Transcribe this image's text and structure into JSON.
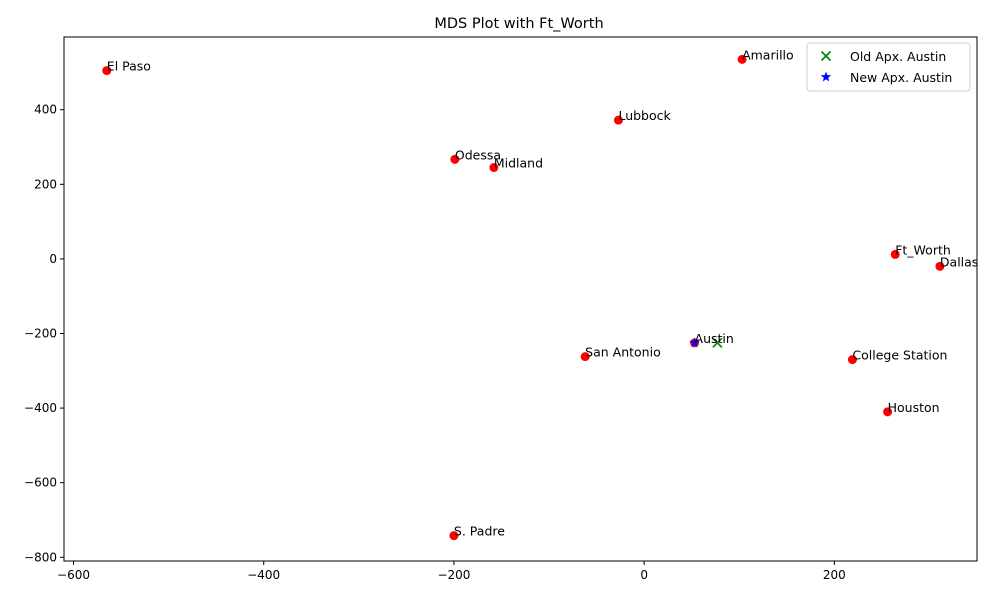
{
  "chart_data": {
    "type": "scatter",
    "title": "MDS Plot with Ft_Worth",
    "xlabel": "",
    "ylabel": "",
    "xlim": [
      -610,
      350
    ],
    "ylim": [
      -810,
      595
    ],
    "x_ticks": [
      -600,
      -400,
      -200,
      0,
      200
    ],
    "y_ticks": [
      -800,
      -600,
      -400,
      -200,
      0,
      200,
      400
    ],
    "grid": false,
    "legend_position": "top-right",
    "colors": {
      "cities": "#ff0000",
      "old": "#008000",
      "new": "#0000ff"
    },
    "cities": [
      {
        "name": "El Paso",
        "x": -565,
        "y": 505
      },
      {
        "name": "Amarillo",
        "x": 103,
        "y": 535
      },
      {
        "name": "Lubbock",
        "x": -27,
        "y": 372
      },
      {
        "name": "Odessa",
        "x": -199,
        "y": 267
      },
      {
        "name": "Midland",
        "x": -158,
        "y": 245
      },
      {
        "name": "Ft_Worth",
        "x": 264,
        "y": 12
      },
      {
        "name": "Dallas",
        "x": 311,
        "y": -20
      },
      {
        "name": "Austin",
        "x": 53,
        "y": -225
      },
      {
        "name": "San Antonio",
        "x": -62,
        "y": -262
      },
      {
        "name": "College Station",
        "x": 219,
        "y": -270
      },
      {
        "name": "Houston",
        "x": 256,
        "y": -410
      },
      {
        "name": "S. Padre",
        "x": -200,
        "y": -742
      }
    ],
    "series": [
      {
        "name": "Old Apx. Austin",
        "marker": "x",
        "color": "#008000",
        "x": [
          77
        ],
        "y": [
          -225
        ]
      },
      {
        "name": "New Apx. Austin",
        "marker": "star",
        "color": "#0000ff",
        "x": [
          53
        ],
        "y": [
          -225
        ]
      }
    ]
  }
}
